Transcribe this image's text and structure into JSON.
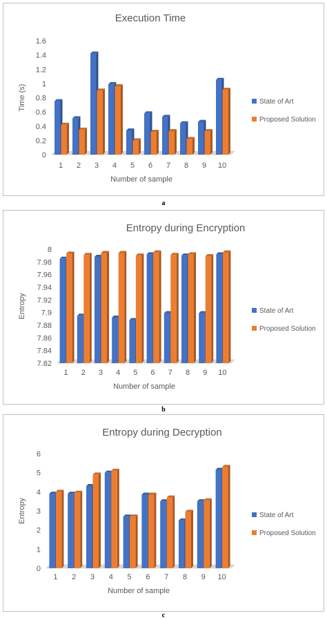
{
  "chart_data": [
    {
      "type": "bar",
      "title": "Execution Time",
      "xlabel": "Number of sample",
      "ylabel": "Time (s)",
      "categories": [
        "1",
        "2",
        "3",
        "4",
        "5",
        "6",
        "7",
        "8",
        "9",
        "10"
      ],
      "ylim": [
        0,
        1.6
      ],
      "yticks": [
        "0",
        "0.2",
        "0.4",
        "0.6",
        "0.8",
        "1",
        "1.2",
        "1.4",
        "1.6"
      ],
      "legend_position": "right",
      "grid": false,
      "series": [
        {
          "name": "State of Art",
          "color": "#4472c4",
          "values": [
            0.75,
            0.51,
            1.42,
            0.99,
            0.34,
            0.58,
            0.53,
            0.44,
            0.46,
            1.05
          ]
        },
        {
          "name": "Proposed Solution",
          "color": "#ed7d31",
          "values": [
            0.42,
            0.35,
            0.9,
            0.96,
            0.2,
            0.32,
            0.33,
            0.22,
            0.33,
            0.91
          ]
        }
      ]
    },
    {
      "type": "bar",
      "title": "Entropy during Encryption",
      "xlabel": "Number of sample",
      "ylabel": "Entropy",
      "categories": [
        "1",
        "2",
        "3",
        "4",
        "5",
        "6",
        "7",
        "8",
        "9",
        "10"
      ],
      "ylim": [
        7.82,
        8
      ],
      "yticks": [
        "7.82",
        "7.84",
        "7.86",
        "7.88",
        "7.9",
        "7.92",
        "7.94",
        "7.96",
        "7.98",
        "8"
      ],
      "legend_position": "right",
      "grid": false,
      "series": [
        {
          "name": "State of Art",
          "color": "#4472c4",
          "values": [
            7.985,
            7.895,
            7.988,
            7.892,
            7.888,
            7.992,
            7.899,
            7.99,
            7.899,
            7.992
          ]
        },
        {
          "name": "Proposed Solution",
          "color": "#ed7d31",
          "values": [
            7.993,
            7.991,
            7.994,
            7.994,
            7.99,
            7.995,
            7.991,
            7.992,
            7.989,
            7.995
          ]
        }
      ]
    },
    {
      "type": "bar",
      "title": "Entropy during Decryption",
      "xlabel": "Number of sample",
      "ylabel": "Entropy",
      "categories": [
        "1",
        "2",
        "3",
        "4",
        "5",
        "6",
        "7",
        "8",
        "9",
        "10"
      ],
      "ylim": [
        0,
        6
      ],
      "yticks": [
        "0",
        "1",
        "2",
        "3",
        "4",
        "5",
        "6"
      ],
      "legend_position": "right",
      "grid": false,
      "series": [
        {
          "name": "State of Art",
          "color": "#4472c4",
          "values": [
            3.9,
            3.9,
            4.3,
            5.0,
            2.7,
            3.85,
            3.5,
            2.5,
            3.5,
            5.15
          ]
        },
        {
          "name": "Proposed Solution",
          "color": "#ed7d31",
          "values": [
            4.0,
            3.95,
            4.9,
            5.1,
            2.7,
            3.85,
            3.7,
            2.95,
            3.55,
            5.3
          ]
        }
      ]
    }
  ],
  "captions": [
    "a",
    "b",
    "c"
  ]
}
